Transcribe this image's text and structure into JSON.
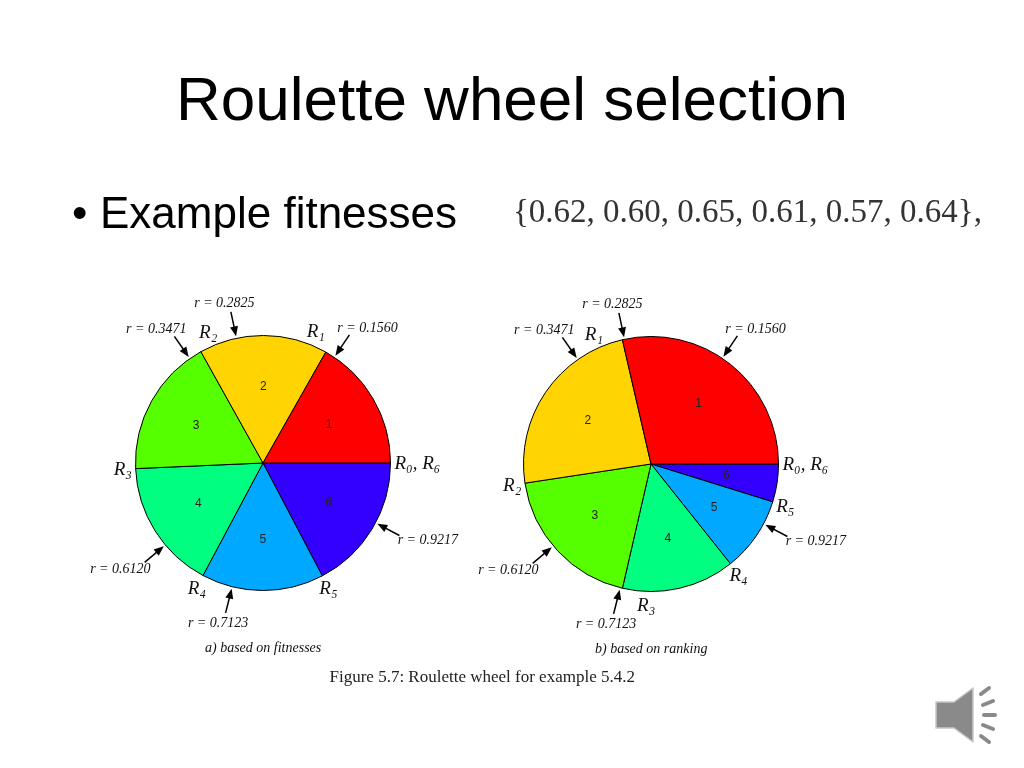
{
  "chart_data": [
    {
      "type": "other",
      "title": "Roulette wheel selection",
      "annotations": [
        "•",
        "Example fitnesses",
        "{0.62, 0.60, 0.65, 0.61, 0.57, 0.64},",
        "Figure 5.7: Roulette wheel for example 5.4.2"
      ]
    },
    {
      "type": "pie",
      "title": "a) based on fitnesses",
      "categories": [
        "1",
        "2",
        "3",
        "4",
        "5",
        "6"
      ],
      "values": [
        16.8,
        16.3,
        17.6,
        16.5,
        15.5,
        17.3
      ],
      "colors": [
        "#ff0000",
        "#ffd400",
        "#55ff00",
        "#00ff80",
        "#00a8ff",
        "#3300ff"
      ],
      "annotations": [
        "R₀, R₆",
        "R₁",
        "R₂",
        "R₃",
        "R₄",
        "R₅",
        "r = 0.1560",
        "r = 0.2825",
        "r = 0.3471",
        "r = 0.6120",
        "r = 0.7123",
        "r = 0.9217"
      ]
    },
    {
      "type": "pie",
      "title": "b) based on ranking",
      "categories": [
        "1",
        "2",
        "3",
        "4",
        "5",
        "6"
      ],
      "values": [
        28.6,
        23.8,
        19.0,
        14.3,
        9.5,
        4.8
      ],
      "colors": [
        "#ff0000",
        "#ffd400",
        "#55ff00",
        "#00ff80",
        "#00a8ff",
        "#3300ff"
      ],
      "annotations": [
        "R₀, R₆",
        "R₁",
        "R₂",
        "R₃",
        "R₄",
        "R₅",
        "r = 0.1560",
        "r = 0.2825",
        "r = 0.3471",
        "r = 0.6120",
        "r = 0.7123",
        "r = 0.9217"
      ]
    }
  ]
}
